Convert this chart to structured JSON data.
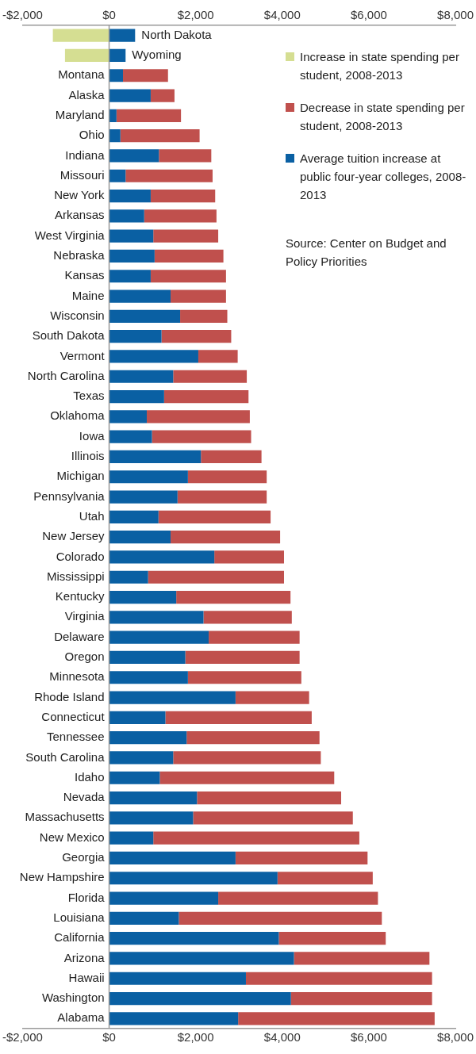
{
  "chart_data": {
    "type": "bar",
    "orientation": "horizontal",
    "stacked": true,
    "legend": "top right",
    "categories": [
      "North Dakota",
      "Wyoming",
      "Montana",
      "Alaska",
      "Maryland",
      "Ohio",
      "Indiana",
      "Missouri",
      "New York",
      "Arkansas",
      "West Virginia",
      "Nebraska",
      "Kansas",
      "Maine",
      "Wisconsin",
      "South Dakota",
      "Vermont",
      "North Carolina",
      "Texas",
      "Oklahoma",
      "Iowa",
      "Illinois",
      "Michigan",
      "Pennsylvania",
      "Utah",
      "New Jersey",
      "Colorado",
      "Mississippi",
      "Kentucky",
      "Virginia",
      "Delaware",
      "Oregon",
      "Minnesota",
      "Rhode Island",
      "Connecticut",
      "Tennessee",
      "South Carolina",
      "Idaho",
      "Nevada",
      "Massachusetts",
      "New Mexico",
      "Georgia",
      "New Hampshire",
      "Florida",
      "Louisiana",
      "California",
      "Arizona",
      "Hawaii",
      "Washington",
      "Alabama"
    ],
    "series": [
      {
        "name": "Average tuition increase at public four-year colleges, 2008-2013",
        "color": "#0a60a3",
        "values": [
          600,
          380,
          320,
          960,
          170,
          260,
          1150,
          380,
          960,
          810,
          1020,
          1050,
          960,
          1420,
          1640,
          1210,
          2060,
          1480,
          1270,
          870,
          990,
          2120,
          1820,
          1580,
          1140,
          1420,
          2430,
          900,
          1550,
          2180,
          2300,
          1760,
          1820,
          2920,
          1300,
          1790,
          1480,
          1170,
          2030,
          1940,
          1020,
          2920,
          3890,
          2520,
          1610,
          3920,
          4270,
          3160,
          4200,
          2980
        ]
      },
      {
        "name": "Decrease in state spending per student, 2008-2013",
        "color": "#c0504d",
        "values": [
          null,
          null,
          1040,
          550,
          1490,
          1830,
          1210,
          2010,
          1490,
          1670,
          1500,
          1590,
          1740,
          1280,
          1090,
          1610,
          910,
          1700,
          1950,
          2380,
          2290,
          1400,
          1820,
          2060,
          2590,
          2530,
          1610,
          3140,
          2640,
          2040,
          2100,
          2640,
          2620,
          1700,
          3380,
          3070,
          3410,
          4030,
          3330,
          3690,
          4760,
          3050,
          2200,
          3690,
          4690,
          2470,
          3130,
          4300,
          3260,
          4540
        ]
      },
      {
        "name": "Increase in state spending per student, 2008-2013",
        "color": "#d5de92",
        "values": [
          -1300,
          -1020,
          null,
          null,
          null,
          null,
          null,
          null,
          null,
          null,
          null,
          null,
          null,
          null,
          null,
          null,
          null,
          null,
          null,
          null,
          null,
          null,
          null,
          null,
          null,
          null,
          null,
          null,
          null,
          null,
          null,
          null,
          null,
          null,
          null,
          null,
          null,
          null,
          null,
          null,
          null,
          null,
          null,
          null,
          null,
          null,
          null,
          null,
          null,
          null
        ]
      }
    ],
    "xlim": [
      -2000,
      8000
    ],
    "xticks": [
      {
        "value": -2000,
        "label": "-$2,000"
      },
      {
        "value": 0,
        "label": "$0"
      },
      {
        "value": 2000,
        "label": "$2,000"
      },
      {
        "value": 4000,
        "label": "$4,000"
      },
      {
        "value": 6000,
        "label": "$6,000"
      },
      {
        "value": 8000,
        "label": "$8,000"
      }
    ],
    "x2lim": [
      -2000,
      8000
    ],
    "x2ticks": [
      {
        "value": -2000,
        "label": "-$2,000"
      },
      {
        "value": 0,
        "label": "$0"
      },
      {
        "value": 2000,
        "label": "$2,000"
      },
      {
        "value": 4000,
        "label": "$4,000"
      },
      {
        "value": 6000,
        "label": "$6,000"
      },
      {
        "value": 8000,
        "label": "$8,000"
      }
    ],
    "annotations": [
      "Source: Center on Budget and Policy Priorities"
    ]
  }
}
